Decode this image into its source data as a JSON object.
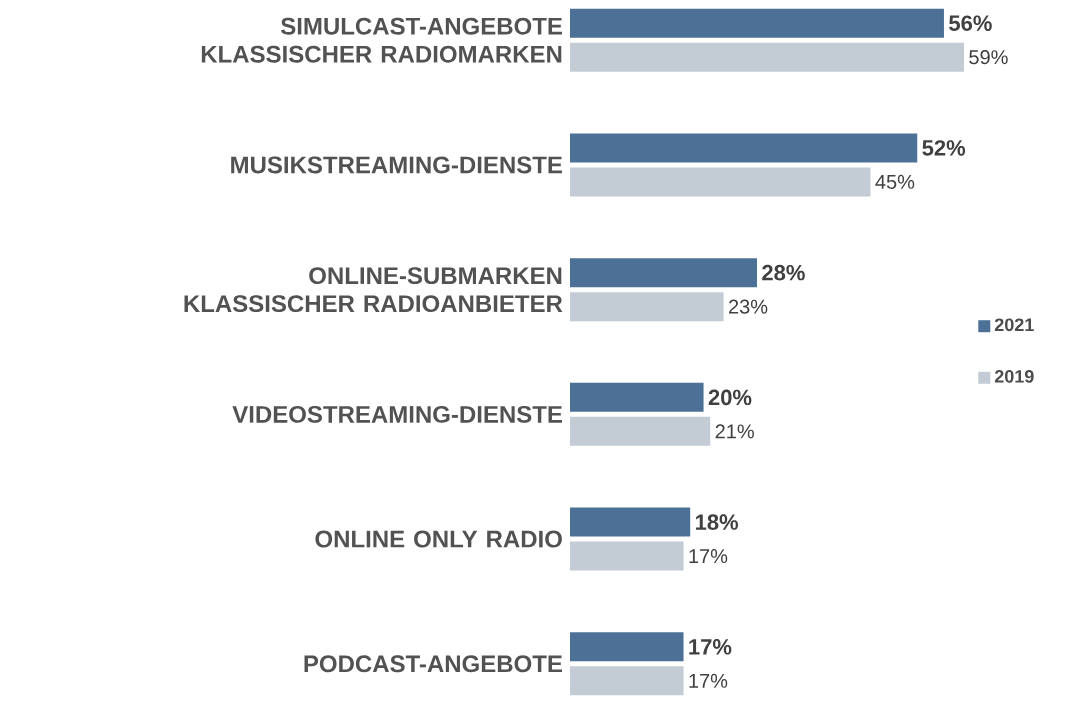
{
  "chart_data": {
    "type": "bar",
    "orientation": "horizontal",
    "categories": [
      "SIMULCAST-ANGEBOTE KLASSISCHER RADIOMARKEN",
      "MUSIKSTREAMING-DIENSTE",
      "ONLINE-SUBMARKEN KLASSISCHER RADIOANBIETER",
      "VIDEOSTREAMING-DIENSTE",
      "ONLINE ONLY RADIO",
      "PODCAST-ANGEBOTE"
    ],
    "series": [
      {
        "name": "2021",
        "color": "#4d7196",
        "values": [
          56,
          52,
          28,
          20,
          18,
          17
        ],
        "value_labels": [
          "56%",
          "52%",
          "28%",
          "20%",
          "18%",
          "17%"
        ]
      },
      {
        "name": "2019",
        "color": "#c3ccd5",
        "values": [
          59,
          45,
          23,
          21,
          17,
          17
        ],
        "value_labels": [
          "59%",
          "45%",
          "23%",
          "21%",
          "17%",
          "17%"
        ]
      }
    ],
    "data_labels": true,
    "legend": "right"
  }
}
